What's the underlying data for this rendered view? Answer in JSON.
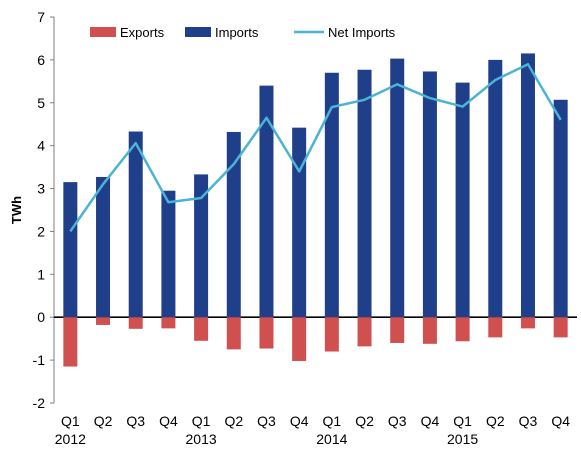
{
  "chart_data": {
    "type": "bar",
    "title": "",
    "xlabel": "",
    "ylabel": "TWh",
    "ylim": [
      -2,
      7
    ],
    "yticks": [
      -2,
      -1,
      0,
      1,
      2,
      3,
      4,
      5,
      6,
      7
    ],
    "grid": false,
    "legend_position": "top",
    "categories": [
      "Q1",
      "Q2",
      "Q3",
      "Q4",
      "Q1",
      "Q2",
      "Q3",
      "Q4",
      "Q1",
      "Q2",
      "Q3",
      "Q4",
      "Q1",
      "Q2",
      "Q3",
      "Q4"
    ],
    "year_labels": [
      {
        "index": 0,
        "label": "2012"
      },
      {
        "index": 4,
        "label": "2013"
      },
      {
        "index": 8,
        "label": "2014"
      },
      {
        "index": 12,
        "label": "2015"
      }
    ],
    "series": [
      {
        "name": "Exports",
        "kind": "bar",
        "color": "#d05050",
        "values": [
          -1.15,
          -0.18,
          -0.27,
          -0.26,
          -0.55,
          -0.75,
          -0.73,
          -1.02,
          -0.8,
          -0.68,
          -0.6,
          -0.62,
          -0.56,
          -0.47,
          -0.26,
          -0.47
        ]
      },
      {
        "name": "Imports",
        "kind": "bar",
        "color": "#1f3f8a",
        "values": [
          3.15,
          3.27,
          4.33,
          2.95,
          3.33,
          4.32,
          5.4,
          4.42,
          5.7,
          5.77,
          6.03,
          5.73,
          5.47,
          6.0,
          6.15,
          5.07
        ]
      },
      {
        "name": "Net Imports",
        "kind": "line",
        "color": "#4bb3d4",
        "values": [
          2.0,
          3.1,
          4.06,
          2.68,
          2.78,
          3.57,
          4.65,
          3.4,
          4.9,
          5.07,
          5.43,
          5.11,
          4.91,
          5.53,
          5.9,
          4.6
        ]
      }
    ]
  }
}
